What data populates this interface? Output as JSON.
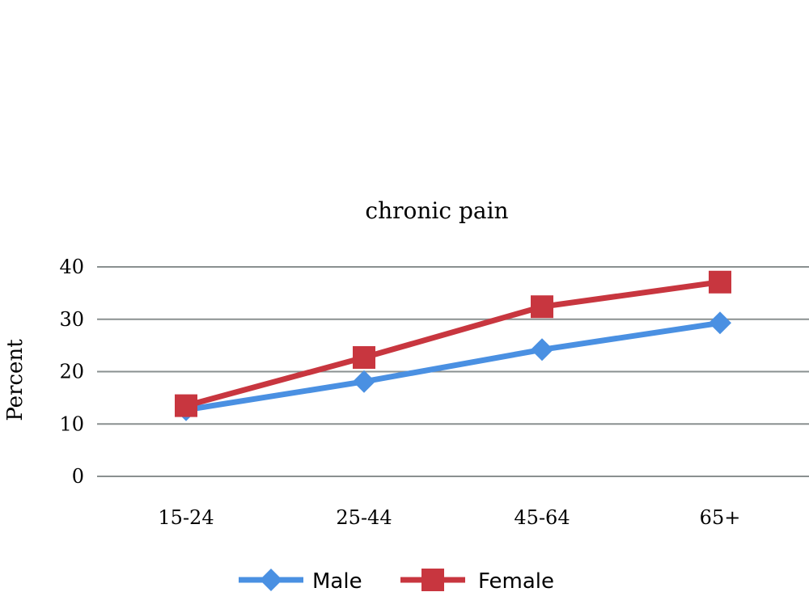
{
  "chart_data": {
    "type": "line",
    "title": "chronic pain",
    "xlabel": "",
    "ylabel": "Percent",
    "categories": [
      "15-24",
      "25-44",
      "45-64",
      "65+"
    ],
    "yticks": [
      "0",
      "10",
      "20",
      "30",
      "40"
    ],
    "ylim": [
      0,
      40
    ],
    "grid": true,
    "legend_position": "bottom",
    "series": [
      {
        "name": "Male",
        "values": [
          12.7,
          18.1,
          24.2,
          29.3
        ],
        "color": "#4a90e2",
        "marker": "diamond"
      },
      {
        "name": "Female",
        "values": [
          13.5,
          22.7,
          32.4,
          37.1
        ],
        "color": "#c8363f",
        "marker": "square"
      }
    ]
  }
}
